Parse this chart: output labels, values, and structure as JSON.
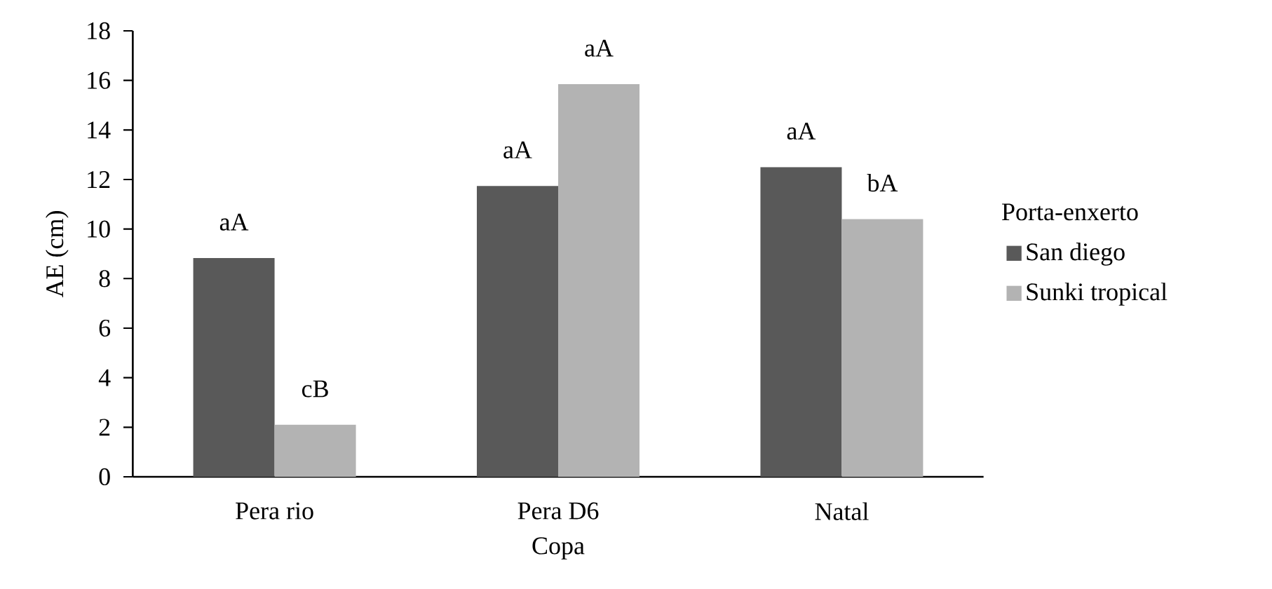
{
  "chart_data": {
    "type": "bar",
    "xlabel": "Copa",
    "ylabel": "AE (cm)",
    "legend_title": "Porta-enxerto",
    "legend": "right",
    "categories": [
      "Pera rio",
      "Pera D6",
      "Natal"
    ],
    "series": [
      {
        "name": "San diego",
        "color": "#595959",
        "values": [
          8.83,
          11.74,
          12.5
        ]
      },
      {
        "name": "Sunki tropical",
        "color": "#b3b3b3",
        "values": [
          2.1,
          15.85,
          10.4
        ]
      }
    ],
    "ylim": [
      0,
      18
    ],
    "yticks": [
      0,
      2,
      4,
      6,
      8,
      10,
      12,
      14,
      16,
      18
    ],
    "grid": false,
    "annotations": [
      {
        "text": "aA",
        "x": "Pera rio",
        "y": 8.83
      },
      {
        "text": "cB",
        "x": "Pera rio",
        "y": 2.1
      },
      {
        "text": "aA",
        "x": "Pera D6",
        "y": 11.74
      },
      {
        "text": "aA",
        "x": "Pera D6",
        "y": 15.85
      },
      {
        "text": "aA",
        "x": "Natal",
        "y": 12.5
      },
      {
        "text": "bA",
        "x": "Natal",
        "y": 10.4
      }
    ]
  }
}
